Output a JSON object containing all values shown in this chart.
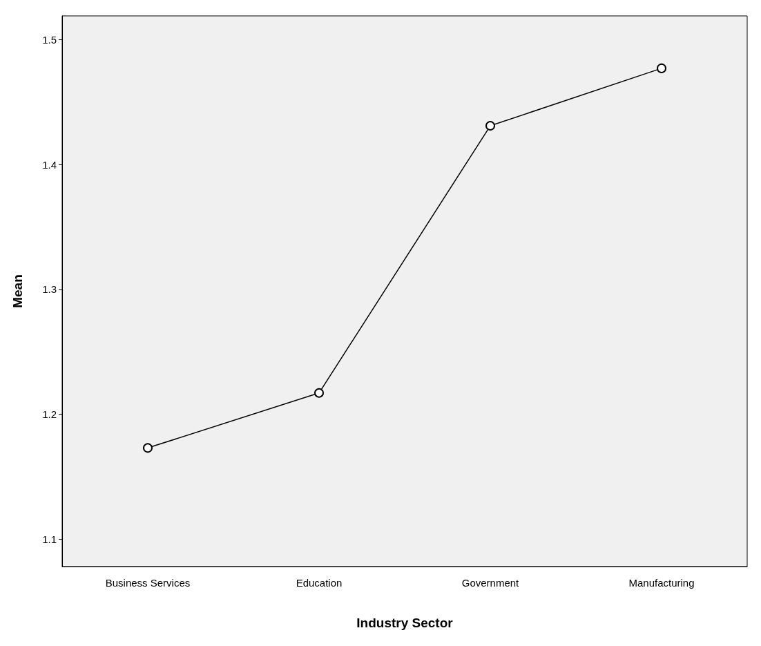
{
  "chart_data": {
    "type": "line",
    "xlabel": "Industry Sector",
    "ylabel": "Mean",
    "categories": [
      "Business Services",
      "Education",
      "Government",
      "Manufacturing"
    ],
    "series": [
      {
        "color": "#000000",
        "values": [
          1.173,
          1.217,
          1.431,
          1.477
        ]
      }
    ],
    "ylim": [
      1.078,
      1.519
    ],
    "yticks": [
      1.1,
      1.2,
      1.3,
      1.4,
      1.5
    ],
    "grid": false,
    "marker": "circle",
    "line_style": "solid"
  }
}
